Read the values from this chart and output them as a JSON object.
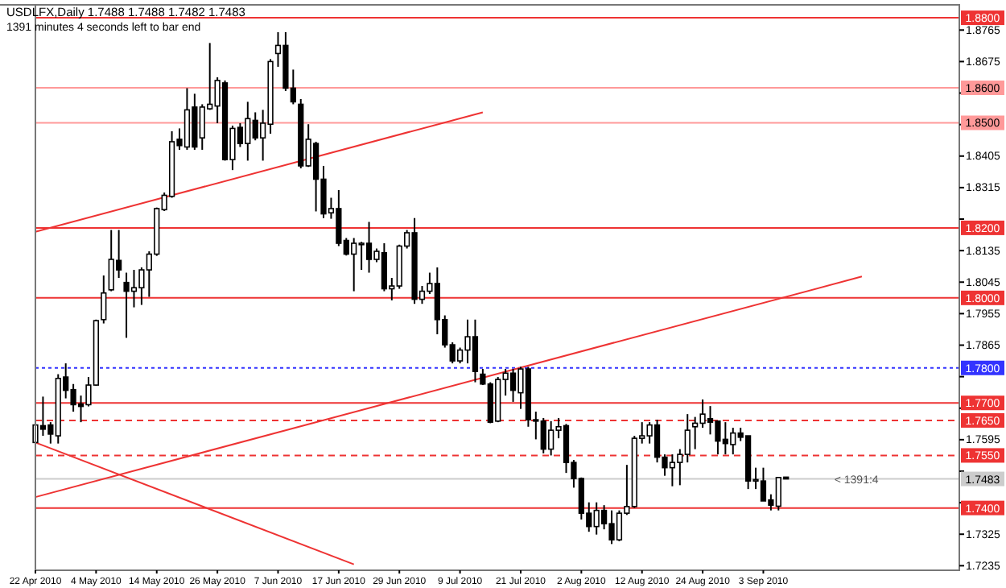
{
  "chart_data": {
    "type": "candlestick",
    "title": "USDLFX,Daily  1.7488 1.7488 1.7482 1.7483",
    "subtitle": "1391 minutes 4 seconds left to bar end",
    "annotations": [
      {
        "text": "< 1391:4",
        "y": 1.7483
      }
    ],
    "categories": [
      "22 Apr 2010",
      null,
      null,
      null,
      null,
      null,
      null,
      null,
      "4 May 2010",
      null,
      null,
      null,
      null,
      null,
      null,
      null,
      "14 May 2010",
      null,
      null,
      null,
      null,
      null,
      null,
      null,
      "26 May 2010",
      null,
      null,
      null,
      null,
      null,
      null,
      null,
      "7 Jun 2010",
      null,
      null,
      null,
      null,
      null,
      null,
      null,
      "17 Jun 2010",
      null,
      null,
      null,
      null,
      null,
      null,
      null,
      "29 Jun 2010",
      null,
      null,
      null,
      null,
      null,
      null,
      null,
      "9 Jul 2010",
      null,
      null,
      null,
      null,
      null,
      null,
      null,
      "21 Jul 2010",
      null,
      null,
      null,
      null,
      null,
      null,
      null,
      "2 Aug 2010",
      null,
      null,
      null,
      null,
      null,
      null,
      null,
      "12 Aug 2010",
      null,
      null,
      null,
      null,
      null,
      null,
      null,
      "24 Aug 2010",
      null,
      null,
      null,
      null,
      null,
      null,
      null,
      "3 Sep 2010",
      null,
      null,
      null,
      null,
      null,
      null,
      null,
      null,
      null,
      null,
      null,
      null,
      null,
      null,
      null,
      null,
      null,
      null,
      null,
      null,
      null,
      null,
      null,
      null,
      null
    ],
    "ohlc": [
      [
        1.7587,
        1.7645,
        1.755,
        1.7637
      ],
      [
        1.7635,
        1.7718,
        1.7606,
        1.7625
      ],
      [
        1.7637,
        1.7645,
        1.7584,
        1.7611
      ],
      [
        1.7606,
        1.7782,
        1.7584,
        1.777
      ],
      [
        1.7774,
        1.7813,
        1.7713,
        1.7736
      ],
      [
        1.7738,
        1.7754,
        1.7675,
        1.7695
      ],
      [
        1.7697,
        1.7721,
        1.7645,
        1.769
      ],
      [
        1.7695,
        1.7774,
        1.769,
        1.7751
      ],
      [
        1.7751,
        1.7938,
        1.7749,
        1.7935
      ],
      [
        1.7938,
        1.8064,
        1.7927,
        1.8014
      ],
      [
        1.8023,
        1.8194,
        1.8019,
        1.811
      ],
      [
        1.8107,
        1.8194,
        1.8057,
        1.808
      ],
      [
        1.8044,
        1.8072,
        1.7886,
        1.8019
      ],
      [
        1.8019,
        1.808,
        1.7973,
        1.8029
      ],
      [
        1.8029,
        1.8087,
        1.798,
        1.808
      ],
      [
        1.808,
        1.8133,
        1.8003,
        1.8125
      ],
      [
        1.8125,
        1.8258,
        1.812,
        1.8255
      ],
      [
        1.8252,
        1.8301,
        1.8248,
        1.8293
      ],
      [
        1.829,
        1.8476,
        1.8286,
        1.8446
      ],
      [
        1.8453,
        1.8484,
        1.8423,
        1.8435
      ],
      [
        1.8431,
        1.8599,
        1.8423,
        1.8537
      ],
      [
        1.8545,
        1.8583,
        1.8423,
        1.8431
      ],
      [
        1.8457,
        1.8553,
        1.8423,
        1.8545
      ],
      [
        1.854,
        1.8728,
        1.8537,
        1.8553
      ],
      [
        1.8548,
        1.863,
        1.8499,
        1.8621
      ],
      [
        1.8614,
        1.8621,
        1.8392,
        1.8395
      ],
      [
        1.8395,
        1.8492,
        1.8365,
        1.8484
      ],
      [
        1.8487,
        1.8499,
        1.8431,
        1.8441
      ],
      [
        1.8441,
        1.856,
        1.8392,
        1.8512
      ],
      [
        1.8507,
        1.853,
        1.845,
        1.8457
      ],
      [
        1.8457,
        1.8537,
        1.8392,
        1.8499
      ],
      [
        1.8496,
        1.8682,
        1.8469,
        1.8675
      ],
      [
        1.8698,
        1.8759,
        1.866,
        1.8721
      ],
      [
        1.8721,
        1.8759,
        1.8591,
        1.8599
      ],
      [
        1.8599,
        1.8652,
        1.8553,
        1.856
      ],
      [
        1.8553,
        1.8568,
        1.837,
        1.8377
      ],
      [
        1.8377,
        1.8496,
        1.8374,
        1.8453
      ],
      [
        1.8441,
        1.8446,
        1.8247,
        1.8339
      ],
      [
        1.8339,
        1.8377,
        1.8228,
        1.824
      ],
      [
        1.8243,
        1.8286,
        1.8226,
        1.8255
      ],
      [
        1.8255,
        1.8308,
        1.8148,
        1.8156
      ],
      [
        1.8164,
        1.8171,
        1.8121,
        1.8125
      ],
      [
        1.8125,
        1.8171,
        1.8019,
        1.8156
      ],
      [
        1.8152,
        1.816,
        1.808,
        1.8156
      ],
      [
        1.8156,
        1.8217,
        1.8072,
        1.811
      ],
      [
        1.811,
        1.8141,
        1.8102,
        1.8133
      ],
      [
        1.8129,
        1.8156,
        1.8019,
        1.8026
      ],
      [
        1.8026,
        1.8057,
        1.7993,
        1.8034
      ],
      [
        1.8034,
        1.8152,
        1.8026,
        1.8148
      ],
      [
        1.8148,
        1.8194,
        1.8141,
        1.8186
      ],
      [
        1.8186,
        1.8228,
        1.7983,
        1.7996
      ],
      [
        1.7996,
        1.8034,
        1.7983,
        1.8019
      ],
      [
        1.8019,
        1.8072,
        1.8011,
        1.8041
      ],
      [
        1.8041,
        1.8087,
        1.7896,
        1.7938
      ],
      [
        1.7938,
        1.795,
        1.7858,
        1.7866
      ],
      [
        1.7866,
        1.7873,
        1.7813,
        1.782
      ],
      [
        1.782,
        1.7858,
        1.7813,
        1.7851
      ],
      [
        1.7851,
        1.7938,
        1.7813,
        1.7889
      ],
      [
        1.7889,
        1.7938,
        1.7759,
        1.779
      ],
      [
        1.7782,
        1.7797,
        1.7751,
        1.7754
      ],
      [
        1.7754,
        1.7759,
        1.7642,
        1.7645
      ],
      [
        1.7648,
        1.7774,
        1.7645,
        1.7767
      ],
      [
        1.7767,
        1.7797,
        1.7721,
        1.7785
      ],
      [
        1.7785,
        1.7797,
        1.7703,
        1.7736
      ],
      [
        1.7729,
        1.7803,
        1.7683,
        1.7797
      ],
      [
        1.7797,
        1.7803,
        1.7632,
        1.7652
      ],
      [
        1.7652,
        1.7675,
        1.7596,
        1.7648
      ],
      [
        1.7648,
        1.7657,
        1.7556,
        1.7568
      ],
      [
        1.7568,
        1.7648,
        1.755,
        1.7622
      ],
      [
        1.7622,
        1.7657,
        1.7599,
        1.7632
      ],
      [
        1.7635,
        1.764,
        1.75,
        1.753
      ],
      [
        1.753,
        1.7537,
        1.7458,
        1.7484
      ],
      [
        1.7484,
        1.7487,
        1.7367,
        1.7385
      ],
      [
        1.7385,
        1.7416,
        1.7332,
        1.7347
      ],
      [
        1.7347,
        1.7416,
        1.7324,
        1.7393
      ],
      [
        1.7393,
        1.7408,
        1.7339,
        1.7355
      ],
      [
        1.7355,
        1.7393,
        1.7297,
        1.7309
      ],
      [
        1.7309,
        1.7393,
        1.7305,
        1.7385
      ],
      [
        1.7385,
        1.7523,
        1.738,
        1.7404
      ],
      [
        1.7404,
        1.7606,
        1.74,
        1.7599
      ],
      [
        1.7599,
        1.7645,
        1.7584,
        1.7606
      ],
      [
        1.7606,
        1.7645,
        1.7584,
        1.7637
      ],
      [
        1.7637,
        1.7652,
        1.753,
        1.7545
      ],
      [
        1.7545,
        1.7553,
        1.7492,
        1.7515
      ],
      [
        1.7515,
        1.7553,
        1.7462,
        1.753
      ],
      [
        1.753,
        1.7568,
        1.7465,
        1.7553
      ],
      [
        1.7553,
        1.7668,
        1.753,
        1.7622
      ],
      [
        1.7632,
        1.766,
        1.7568,
        1.7642
      ],
      [
        1.7642,
        1.771,
        1.7629,
        1.7668
      ],
      [
        1.7655,
        1.7691,
        1.761,
        1.7645
      ],
      [
        1.7648,
        1.7648,
        1.7553,
        1.7591
      ],
      [
        1.7596,
        1.7645,
        1.7553,
        1.7584
      ],
      [
        1.7581,
        1.7629,
        1.7553,
        1.7614
      ],
      [
        1.7614,
        1.7629,
        1.7591,
        1.7602
      ],
      [
        1.7606,
        1.7606,
        1.7454,
        1.7477
      ],
      [
        1.7477,
        1.7515,
        1.7454,
        1.7481
      ],
      [
        1.7477,
        1.7515,
        1.742,
        1.742
      ],
      [
        1.7423,
        1.7439,
        1.7393,
        1.7408
      ],
      [
        1.7405,
        1.7487,
        1.7393,
        1.7487
      ],
      [
        1.7488,
        1.7488,
        1.7482,
        1.7483
      ],
      null,
      null,
      null,
      null,
      null,
      null,
      null,
      null,
      null,
      null,
      null,
      null,
      null,
      null,
      null,
      null,
      null,
      null,
      null,
      null,
      null,
      null
    ],
    "series": [
      {
        "type": "line",
        "color": "#ee3333",
        "values": [
          1.8189,
          null,
          null,
          null,
          null,
          null,
          null,
          null,
          null,
          null,
          null,
          null,
          null,
          null,
          null,
          null,
          null,
          null,
          null,
          null,
          null,
          null,
          null,
          null,
          null,
          null,
          null,
          null,
          null,
          null,
          null,
          null,
          null,
          null,
          null,
          null,
          null,
          null,
          null,
          null,
          null,
          null,
          null,
          null,
          null,
          null,
          null,
          null,
          null,
          null,
          null,
          null,
          null,
          null,
          null,
          null,
          null,
          null,
          null,
          1.853,
          null,
          null,
          null,
          null,
          null,
          null,
          null,
          null,
          null,
          null,
          null,
          null,
          null,
          null,
          null,
          null,
          null,
          null,
          null,
          null,
          null,
          null,
          null,
          null,
          null,
          null,
          null,
          null,
          null,
          null,
          null,
          null,
          null,
          null,
          null,
          null,
          null,
          null,
          null,
          null,
          null,
          null,
          null,
          null,
          null,
          null,
          null,
          null,
          null,
          null,
          null,
          null,
          null,
          null,
          null,
          null,
          null,
          null,
          null,
          null,
          null,
          null
        ]
      },
      {
        "type": "line",
        "color": "#ee3333",
        "values": [
          1.7431,
          null,
          null,
          null,
          null,
          null,
          null,
          null,
          null,
          null,
          null,
          null,
          null,
          null,
          null,
          null,
          null,
          null,
          null,
          null,
          null,
          null,
          null,
          null,
          null,
          null,
          null,
          null,
          null,
          null,
          null,
          null,
          null,
          null,
          null,
          null,
          null,
          null,
          null,
          null,
          null,
          null,
          null,
          null,
          null,
          null,
          null,
          null,
          null,
          null,
          null,
          null,
          null,
          null,
          null,
          null,
          null,
          null,
          null,
          null,
          null,
          null,
          null,
          null,
          null,
          null,
          null,
          null,
          null,
          null,
          null,
          null,
          null,
          null,
          null,
          null,
          null,
          null,
          null,
          null,
          null,
          null,
          null,
          null,
          null,
          null,
          null,
          null,
          null,
          null,
          null,
          null,
          null,
          null,
          null,
          null,
          null,
          null,
          null,
          null,
          null,
          null,
          null,
          null,
          null,
          null,
          null,
          null,
          null,
          1.8061,
          null,
          null,
          null,
          null,
          null,
          null,
          null,
          null,
          null,
          null,
          null,
          null
        ]
      },
      {
        "type": "line",
        "color": "#ee3333",
        "values": [
          1.7587,
          null,
          null,
          null,
          null,
          null,
          null,
          null,
          null,
          null,
          null,
          null,
          null,
          null,
          null,
          null,
          null,
          null,
          null,
          null,
          null,
          null,
          null,
          null,
          null,
          null,
          null,
          null,
          null,
          null,
          null,
          null,
          null,
          null,
          null,
          null,
          null,
          null,
          null,
          null,
          null,
          null,
          1.7239,
          null,
          null,
          null,
          null,
          null,
          null,
          null,
          null,
          null,
          null,
          null,
          null,
          null,
          null,
          null,
          null,
          null,
          null,
          null,
          null,
          null,
          null,
          null,
          null,
          null,
          null,
          null,
          null,
          null,
          null,
          null,
          null,
          null,
          null,
          null,
          null,
          null,
          null,
          null,
          null,
          null,
          null,
          null,
          null,
          null,
          null,
          null,
          null,
          null,
          null,
          null,
          null,
          null,
          null,
          null,
          null,
          null,
          null,
          null,
          null,
          null,
          null,
          null,
          null,
          null,
          null,
          null,
          null,
          null,
          null,
          null,
          null,
          null,
          null,
          null,
          null,
          null,
          null,
          null
        ]
      }
    ],
    "ylim": [
      1.7222,
      1.8837
    ],
    "yticks": [
      1.7235,
      1.7325,
      {
        "value": 1.7415,
        "label": null
      },
      {
        "value": 1.7505,
        "label": null
      },
      1.7595,
      {
        "value": 1.7685,
        "label": null
      },
      {
        "value": 1.7775,
        "label": null
      },
      1.7865,
      1.7955,
      1.8045,
      1.8135,
      {
        "value": 1.8225,
        "label": null
      },
      1.8315,
      1.8405,
      {
        "value": 1.8495,
        "label": null
      },
      {
        "value": 1.8585,
        "label": null
      },
      1.8675,
      1.8765
    ],
    "ref_lines": [
      {
        "axis": "y",
        "value": 1.88,
        "label": "1.8800",
        "color": "#ee3333",
        "line_style": "solid"
      },
      {
        "axis": "y",
        "value": 1.86,
        "label": "1.8600",
        "color": "#ff9999",
        "line_style": "solid"
      },
      {
        "axis": "y",
        "value": 1.85,
        "label": "1.8500",
        "color": "#ff9999",
        "line_style": "solid"
      },
      {
        "axis": "y",
        "value": 1.82,
        "label": "1.8200",
        "color": "#ee3333",
        "line_style": "solid"
      },
      {
        "axis": "y",
        "value": 1.8,
        "label": "1.8000",
        "color": "#ee3333",
        "line_style": "solid"
      },
      {
        "axis": "y",
        "value": 1.78,
        "label": "1.7800",
        "color": "#3333ff",
        "line_style": "dotted"
      },
      {
        "axis": "y",
        "value": 1.77,
        "label": "1.7700",
        "color": "#ee3333",
        "line_style": "solid"
      },
      {
        "axis": "y",
        "value": 1.765,
        "label": "1.7650",
        "color": "#ee3333",
        "line_style": "dashed"
      },
      {
        "axis": "y",
        "value": 1.755,
        "label": "1.7550",
        "color": "#ee3333",
        "line_style": "dashed"
      },
      {
        "axis": "y",
        "value": 1.7483,
        "label": "1.7483",
        "color": "#cccccc",
        "line_style": "solid"
      },
      {
        "axis": "y",
        "value": 1.74,
        "label": "1.7400",
        "color": "#ee3333",
        "line_style": "solid"
      }
    ]
  }
}
